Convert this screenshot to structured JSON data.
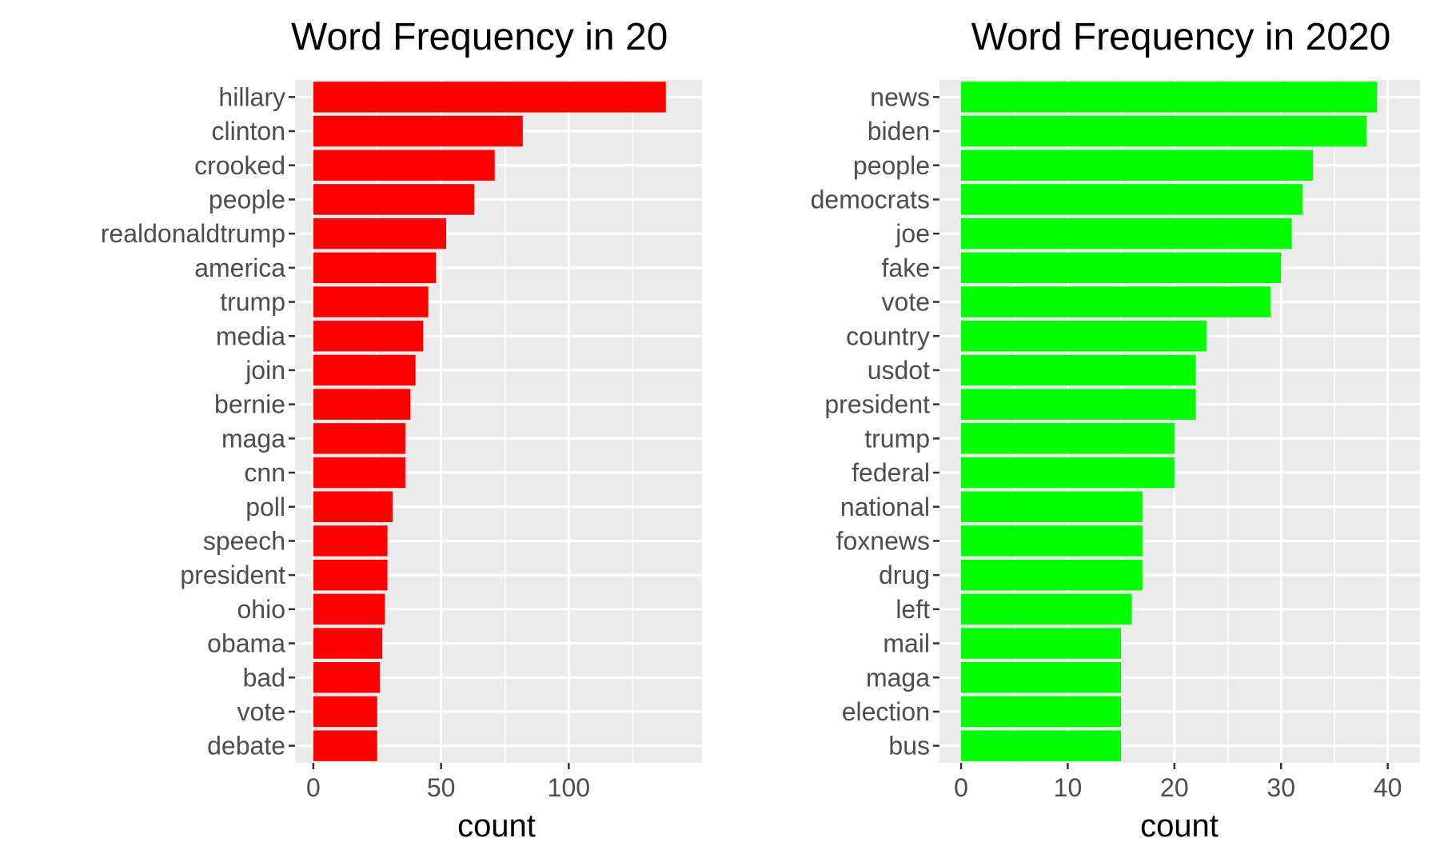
{
  "chart_data": [
    {
      "type": "bar",
      "orientation": "horizontal",
      "title": "Word Frequency in 20",
      "xlabel": "count",
      "ylabel": "",
      "xlim": [
        0,
        145
      ],
      "xticks": [
        0,
        50,
        100
      ],
      "grid": true,
      "bar_color": "#ff0000",
      "panel_color": "#ebebeb",
      "categories": [
        "hillary",
        "clinton",
        "crooked",
        "people",
        "realdonaldtrump",
        "america",
        "trump",
        "media",
        "join",
        "bernie",
        "maga",
        "cnn",
        "poll",
        "speech",
        "president",
        "ohio",
        "obama",
        "bad",
        "vote",
        "debate"
      ],
      "values": [
        138,
        82,
        71,
        63,
        52,
        48,
        45,
        43,
        40,
        38,
        36,
        36,
        31,
        29,
        29,
        28,
        27,
        26,
        25,
        25
      ]
    },
    {
      "type": "bar",
      "orientation": "horizontal",
      "title": "Word Frequency in 2020",
      "xlabel": "count",
      "ylabel": "",
      "xlim": [
        0,
        41
      ],
      "xticks": [
        0,
        10,
        20,
        30,
        40
      ],
      "grid": true,
      "bar_color": "#00ff00",
      "panel_color": "#ebebeb",
      "categories": [
        "news",
        "biden",
        "people",
        "democrats",
        "joe",
        "fake",
        "vote",
        "country",
        "usdot",
        "president",
        "trump",
        "federal",
        "national",
        "foxnews",
        "drug",
        "left",
        "mail",
        "maga",
        "election",
        "bus"
      ],
      "values": [
        39,
        38,
        33,
        32,
        31,
        30,
        29,
        23,
        22,
        22,
        20,
        20,
        17,
        17,
        17,
        16,
        15,
        15,
        15,
        15
      ]
    }
  ]
}
